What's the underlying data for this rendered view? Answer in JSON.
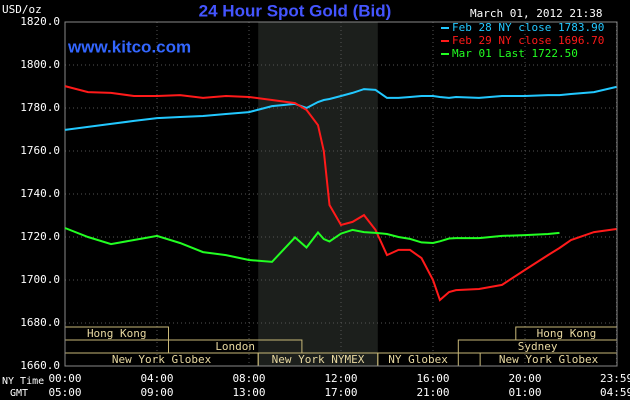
{
  "chart_data": {
    "type": "line",
    "title": "24 Hour Spot Gold (Bid)",
    "timestamp": "March 01, 2012 21:38",
    "source": "www.kitco.com",
    "y_label": "USD/oz",
    "x_label": "NY Time",
    "x2_label": "GMT",
    "x": [
      0,
      1,
      2,
      3,
      4,
      5,
      6,
      7,
      8,
      9,
      10,
      10.5,
      11,
      11.25,
      11.5,
      12,
      12.5,
      13,
      13.5,
      14,
      14.5,
      15,
      15.5,
      16,
      16.3,
      16.7,
      17,
      18,
      19,
      20,
      21,
      21.5,
      22,
      23,
      23.98
    ],
    "series": [
      {
        "name": "Feb 28 NY close 1783.90",
        "color": "#22c8ff",
        "values": [
          1769.8,
          1771.2,
          1772.6,
          1774.0,
          1775.3,
          1775.8,
          1776.3,
          1777.2,
          1778.1,
          1780.9,
          1781.9,
          1780.0,
          1782.8,
          1783.7,
          1784.2,
          1785.6,
          1787.0,
          1788.8,
          1788.4,
          1784.7,
          1784.7,
          1785.1,
          1785.6,
          1785.6,
          1785.1,
          1784.7,
          1785.1,
          1784.7,
          1785.6,
          1785.6,
          1786.0,
          1786.0,
          1786.5,
          1787.4,
          1789.8
        ]
      },
      {
        "name": "Feb 29 NY close 1696.70",
        "color": "#ff1a1a",
        "values": [
          1790.2,
          1787.4,
          1787.0,
          1785.6,
          1785.6,
          1786.0,
          1784.7,
          1785.6,
          1785.1,
          1783.7,
          1782.3,
          1779.1,
          1772.0,
          1760.0,
          1734.9,
          1725.6,
          1727.0,
          1730.2,
          1723.3,
          1711.6,
          1714.0,
          1714.0,
          1710.2,
          1700.0,
          1690.7,
          1694.4,
          1695.3,
          1695.8,
          1697.7,
          1704.7,
          1711.6,
          1714.9,
          1718.6,
          1722.3,
          1723.7
        ]
      },
      {
        "name": "Mar 01 Last 1722.50",
        "color": "#22ff22",
        "values": [
          1724.2,
          1720.0,
          1716.7,
          1718.6,
          1720.5,
          1717.2,
          1713.0,
          1711.6,
          1709.3,
          1708.4,
          1719.8,
          1715.1,
          1722.1,
          1719.0,
          1717.9,
          1721.6,
          1723.3,
          1722.3,
          1721.9,
          1721.4,
          1720.0,
          1719.1,
          1717.5,
          1717.2,
          1718.0,
          1719.3,
          1719.5,
          1719.5,
          1720.5,
          1720.9,
          1721.4,
          1721.9,
          null,
          null,
          null
        ]
      }
    ],
    "xlim": [
      0,
      24
    ],
    "ylim": [
      1660,
      1820
    ],
    "xticks": [
      {
        "value": 0,
        "label": "00:00"
      },
      {
        "value": 4,
        "label": "04:00"
      },
      {
        "value": 8,
        "label": "08:00"
      },
      {
        "value": 12,
        "label": "12:00"
      },
      {
        "value": 16,
        "label": "16:00"
      },
      {
        "value": 20,
        "label": "20:00"
      },
      {
        "value": 23.98,
        "label": "23:59"
      }
    ],
    "xticks_gmt": [
      {
        "value": 0,
        "label": "05:00"
      },
      {
        "value": 4,
        "label": "09:00"
      },
      {
        "value": 8,
        "label": "13:00"
      },
      {
        "value": 12,
        "label": "17:00"
      },
      {
        "value": 16,
        "label": "21:00"
      },
      {
        "value": 20,
        "label": "01:00"
      },
      {
        "value": 23.98,
        "label": "04:59"
      }
    ],
    "yticks": [
      {
        "value": 1660,
        "label": "1660.0"
      },
      {
        "value": 1680,
        "label": "1680.0"
      },
      {
        "value": 1700,
        "label": "1700.0"
      },
      {
        "value": 1720,
        "label": "1720.0"
      },
      {
        "value": 1740,
        "label": "1740.0"
      },
      {
        "value": 1760,
        "label": "1760.0"
      },
      {
        "value": 1780,
        "label": "1780.0"
      },
      {
        "value": 1800,
        "label": "1800.0"
      },
      {
        "value": 1820,
        "label": "1820.0"
      }
    ],
    "grid": true,
    "sessions": [
      {
        "name": "Hong Kong",
        "start": 0,
        "end": 4.5,
        "row": 0
      },
      {
        "name": "Hong Kong",
        "start": 19.6,
        "end": 24,
        "row": 0
      },
      {
        "name": "London",
        "start": 4.5,
        "end": 10.3,
        "row": 1
      },
      {
        "name": "Sydney",
        "start": 17.1,
        "end": 24,
        "row": 1
      },
      {
        "name": "New York Globex",
        "start": 0,
        "end": 8.4,
        "row": 2
      },
      {
        "name": "New York NYMEX",
        "start": 8.4,
        "end": 13.6,
        "row": 2,
        "shaded": true
      },
      {
        "name": "NY Globex",
        "start": 13.6,
        "end": 17.1,
        "row": 2
      },
      {
        "name": "New York Globex",
        "start": 18.05,
        "end": 24,
        "row": 2
      }
    ]
  }
}
